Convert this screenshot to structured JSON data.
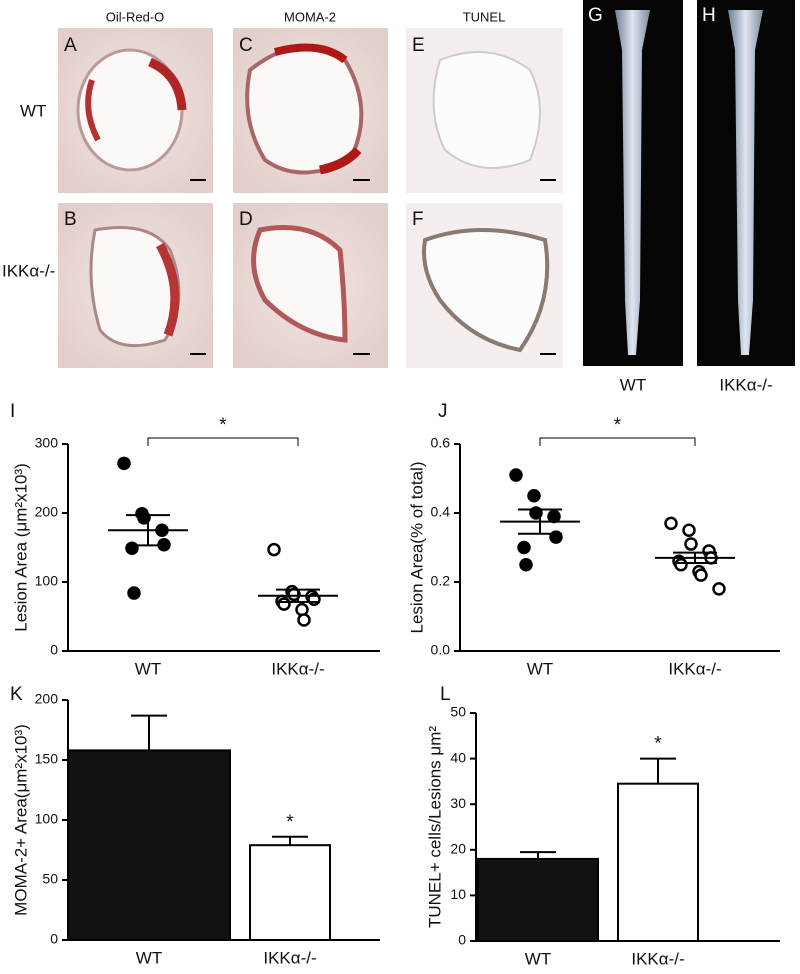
{
  "micrographs": {
    "columns": [
      "Oil-Red-O",
      "MOMA-2",
      "TUNEL"
    ],
    "rows": [
      "WT",
      "IKKα-/-"
    ],
    "panels": [
      "A",
      "B",
      "C",
      "D",
      "E",
      "F"
    ],
    "aorta_panels": [
      "G",
      "H"
    ],
    "aorta_labels": [
      "WT",
      "IKKα-/-"
    ]
  },
  "chart_data": [
    {
      "type": "dot",
      "panel": "I",
      "ylabel": "Lesion Area (μm²x10³)",
      "categories": [
        "WT",
        "IKKα-/-"
      ],
      "points": [
        [
          272,
          199,
          193,
          175,
          154,
          149,
          84
        ],
        [
          147,
          86,
          82,
          79,
          75,
          72,
          68,
          60,
          45
        ]
      ],
      "mean": [
        175,
        80
      ],
      "sem": [
        22,
        9
      ],
      "marker_fill": [
        "#000",
        "#fff"
      ],
      "annotation": "*",
      "ylim": [
        0,
        300
      ],
      "yticks": [
        0,
        100,
        200,
        300
      ]
    },
    {
      "type": "dot",
      "panel": "J",
      "ylabel": "Lesion Area(% of total)",
      "categories": [
        "WT",
        "IKKα-/-"
      ],
      "points": [
        [
          0.51,
          0.45,
          0.4,
          0.39,
          0.33,
          0.3,
          0.25
        ],
        [
          0.37,
          0.35,
          0.31,
          0.29,
          0.27,
          0.26,
          0.25,
          0.23,
          0.22,
          0.18
        ]
      ],
      "mean": [
        0.375,
        0.27
      ],
      "sem": [
        0.035,
        0.015
      ],
      "marker_fill": [
        "#000",
        "#fff"
      ],
      "annotation": "*",
      "ylim": [
        0,
        0.6
      ],
      "yticks": [
        {
          "value": 0,
          "label": "0.0"
        },
        0.2,
        0.4,
        0.6
      ]
    },
    {
      "type": "bar",
      "panel": "K",
      "ylabel": "MOMA-2+ Area(μm²x10³)",
      "categories": [
        "WT",
        "IKKα-/-"
      ],
      "values": [
        158,
        79
      ],
      "errors": [
        29,
        7
      ],
      "colors": [
        "#111",
        "#fff"
      ],
      "annotation": "*",
      "ylim": [
        0,
        200
      ],
      "yticks": [
        0,
        50,
        100,
        150,
        200
      ]
    },
    {
      "type": "bar",
      "panel": "L",
      "ylabel": "TUNEL+ cells/Lesions μm²",
      "categories": [
        "WT",
        "IKKα-/-"
      ],
      "values": [
        18,
        34.5
      ],
      "errors": [
        1.5,
        5.5
      ],
      "colors": [
        "#111",
        "#fff"
      ],
      "annotation": "*",
      "ylim": [
        0,
        50
      ],
      "yticks": [
        0,
        10,
        20,
        30,
        40,
        50
      ]
    }
  ]
}
